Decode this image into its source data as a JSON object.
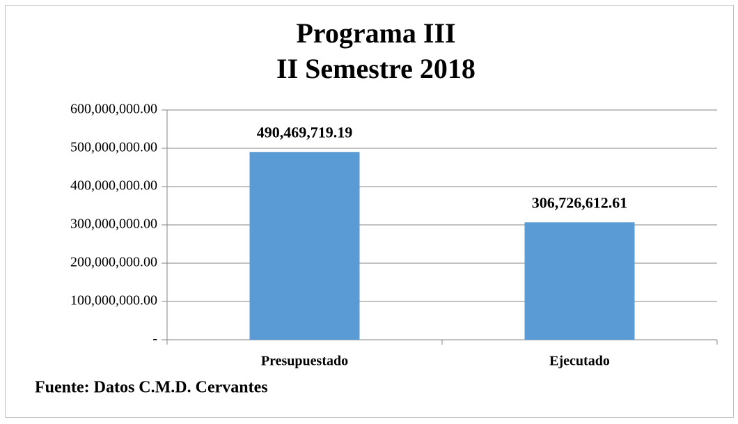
{
  "chart_data": {
    "type": "bar",
    "title": "Programa III",
    "subtitle": "II Semestre 2018",
    "categories": [
      "Presupuestado",
      "Ejecutado"
    ],
    "values": [
      490469719.19,
      306726612.61
    ],
    "value_labels": [
      "490,469,719.19",
      "306,726,612.61"
    ],
    "color": "#5b9bd5",
    "ylim": [
      0,
      600000000
    ],
    "yticks": [
      {
        "value": 0,
        "label": "-"
      },
      {
        "value": 100000000,
        "label": "100,000,000.00"
      },
      {
        "value": 200000000,
        "label": "200,000,000.00"
      },
      {
        "value": 300000000,
        "label": "300,000,000.00"
      },
      {
        "value": 400000000,
        "label": "400,000,000.00"
      },
      {
        "value": 500000000,
        "label": "500,000,000.00"
      },
      {
        "value": 600000000,
        "label": "600,000,000.00"
      }
    ],
    "grid": true,
    "annotation": "Fuente: Datos C.M.D. Cervantes"
  }
}
